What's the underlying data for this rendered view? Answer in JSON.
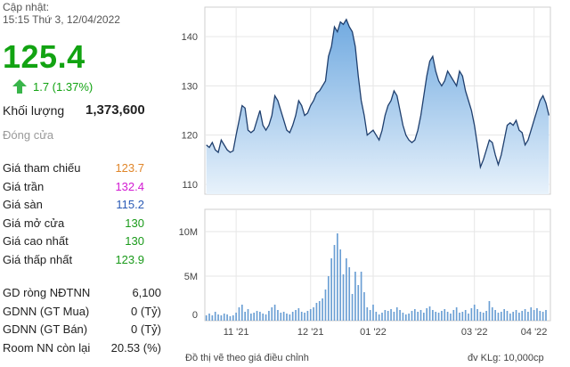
{
  "header": {
    "updated_label": "Cập nhật:",
    "updated_time": "15:15 Thứ 3, 12/04/2022"
  },
  "quote": {
    "price": "125.4",
    "change": "1.7 (1.37%)",
    "volume_label": "Khối lượng",
    "volume_value": "1,373,600",
    "status": "Đóng cửa"
  },
  "prices": [
    {
      "label": "Giá tham chiếu",
      "value": "123.7",
      "color": "#e0862a"
    },
    {
      "label": "Giá trần",
      "value": "132.4",
      "color": "#d31bd3"
    },
    {
      "label": "Giá sàn",
      "value": "115.2",
      "color": "#2a5ab5"
    },
    {
      "label": "Giá mở cửa",
      "value": "130",
      "color": "#1a9a1a"
    },
    {
      "label": "Giá cao nhất",
      "value": "130",
      "color": "#1a9a1a"
    },
    {
      "label": "Giá thấp nhất",
      "value": "123.9",
      "color": "#1a9a1a"
    }
  ],
  "foreign": [
    {
      "label": "GD ròng NĐTNN",
      "value": "6,100"
    },
    {
      "label": "GDNN (GT Mua)",
      "value": "0 (Tỷ)"
    },
    {
      "label": "GDNN (GT Bán)",
      "value": "0 (Tỷ)"
    },
    {
      "label": "Room NN còn lại",
      "value": "20.53 (%)"
    }
  ],
  "chart_data": {
    "type": "area",
    "price_yticks": [
      110,
      120,
      130,
      140
    ],
    "price_ylim": [
      108,
      146
    ],
    "volume_yticks": [
      "0",
      "5M",
      "10M"
    ],
    "volume_tick_values": [
      0,
      5,
      10
    ],
    "volume_ylim": [
      0,
      12.5
    ],
    "xticks": [
      "11 '21",
      "12 '21",
      "01 '22",
      "03 '22",
      "04 '22"
    ],
    "xtick_index": [
      10,
      35,
      56,
      90,
      110
    ],
    "price": [
      118,
      117.5,
      118.5,
      117,
      116.5,
      119,
      118,
      117,
      116.5,
      116.8,
      120,
      123,
      126,
      125.5,
      121,
      120.5,
      121,
      123,
      125,
      122,
      121,
      122,
      124,
      128,
      127,
      125,
      123,
      121,
      120.5,
      122,
      124,
      127,
      126,
      124,
      124.5,
      126,
      127,
      128.5,
      129,
      130,
      131,
      136,
      138,
      142,
      141,
      143,
      142.5,
      143.5,
      142,
      141,
      138,
      132,
      127,
      124,
      120,
      120.5,
      121,
      120,
      119,
      121,
      124,
      126,
      127,
      129,
      128,
      125,
      122,
      120,
      119,
      118.5,
      119,
      121,
      124,
      128,
      132,
      135,
      136,
      133,
      131,
      130,
      131,
      133,
      132,
      131,
      130,
      133,
      132,
      129,
      127,
      125,
      122,
      118,
      113.5,
      115,
      117,
      119,
      118.5,
      116,
      114,
      116,
      119,
      122,
      122.5,
      122,
      123,
      121,
      120.5,
      118,
      119,
      121,
      123,
      125,
      127,
      128,
      126.5,
      124
    ],
    "volume": [
      0.6,
      0.8,
      0.6,
      1.0,
      0.7,
      0.6,
      0.8,
      0.7,
      0.5,
      0.6,
      0.9,
      1.5,
      1.8,
      1.0,
      1.3,
      0.8,
      0.9,
      1.1,
      1.0,
      0.8,
      0.7,
      1.1,
      1.5,
      1.8,
      1.2,
      0.9,
      1.0,
      0.8,
      0.7,
      1.0,
      1.2,
      1.4,
      1.0,
      0.9,
      1.1,
      1.3,
      1.5,
      2.0,
      2.2,
      2.5,
      3.5,
      5.0,
      7.0,
      8.5,
      9.8,
      8.0,
      5.2,
      7.0,
      6.0,
      3.0,
      5.5,
      4.0,
      5.5,
      3.2,
      1.5,
      1.2,
      1.8,
      1.0,
      0.7,
      0.9,
      1.2,
      1.1,
      1.3,
      1.0,
      1.5,
      1.2,
      0.9,
      0.7,
      0.8,
      1.1,
      1.3,
      1.0,
      1.2,
      0.9,
      1.4,
      1.6,
      1.2,
      1.0,
      0.9,
      1.1,
      1.3,
      1.0,
      0.8,
      1.2,
      1.5,
      0.9,
      1.0,
      1.2,
      0.8,
      1.4,
      1.8,
      1.3,
      1.0,
      0.9,
      1.1,
      2.2,
      1.5,
      1.2,
      0.9,
      1.0,
      1.3,
      1.1,
      0.8,
      1.0,
      1.2,
      0.9,
      1.1,
      1.3,
      1.0,
      1.5,
      1.2,
      1.4,
      1.1,
      1.0,
      1.2
    ],
    "area_color": "#6aa6df",
    "volume_color": "#6b9fd4"
  },
  "footer": {
    "note": "Đồ thị vẽ theo giá điều chỉnh",
    "unit": "đv KLg: 10,000cp"
  }
}
